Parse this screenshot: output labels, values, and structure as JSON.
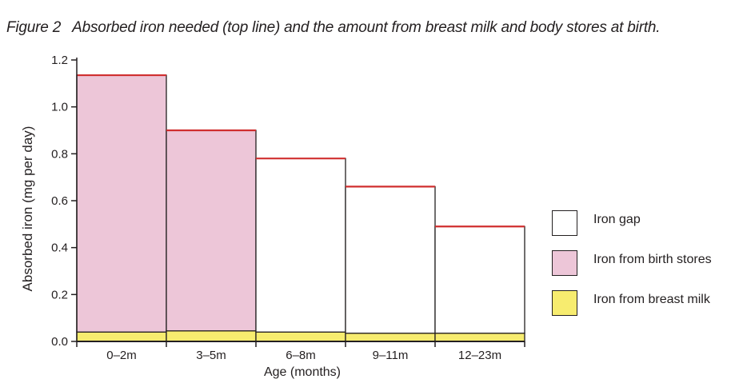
{
  "figure": {
    "number": "Figure 2",
    "caption": "Absorbed iron needed (top line) and the amount from breast milk and body stores at birth."
  },
  "colors": {
    "iron_gap": "#ffffff",
    "birth_stores": "#edc6d8",
    "breast_milk": "#f7ec6f",
    "requirement_line": "#d02f2f",
    "axis": "#231f20"
  },
  "chart_data": {
    "type": "bar",
    "stacked": true,
    "categories": [
      "0–2m",
      "3–5m",
      "6–8m",
      "9–11m",
      "12–23m"
    ],
    "series": [
      {
        "name": "Iron from breast milk",
        "key": "breast_milk",
        "values": [
          0.04,
          0.045,
          0.04,
          0.035,
          0.035
        ]
      },
      {
        "name": "Iron from birth stores",
        "key": "birth_stores",
        "values": [
          1.095,
          0.855,
          0,
          0,
          0
        ]
      },
      {
        "name": "Iron gap",
        "key": "iron_gap",
        "values": [
          0,
          0,
          0.74,
          0.625,
          0.455
        ]
      }
    ],
    "requirement_line": [
      1.135,
      0.9,
      0.78,
      0.66,
      0.49
    ],
    "xlabel": "Age (months)",
    "ylabel": "Absorbed iron (mg per day)",
    "ylim": [
      0,
      1.2
    ],
    "yticks": [
      0.0,
      0.2,
      0.4,
      0.6,
      0.8,
      1.0,
      1.2
    ],
    "ytick_labels": [
      "0.0",
      "0.2",
      "0.4",
      "0.6",
      "0.8",
      "1.0",
      "1.2"
    ],
    "legend": {
      "position": "right",
      "items": [
        {
          "label": "Iron gap",
          "key": "iron_gap"
        },
        {
          "label": "Iron from birth stores",
          "key": "birth_stores"
        },
        {
          "label": "Iron from breast milk",
          "key": "breast_milk"
        }
      ]
    },
    "grid": false
  }
}
